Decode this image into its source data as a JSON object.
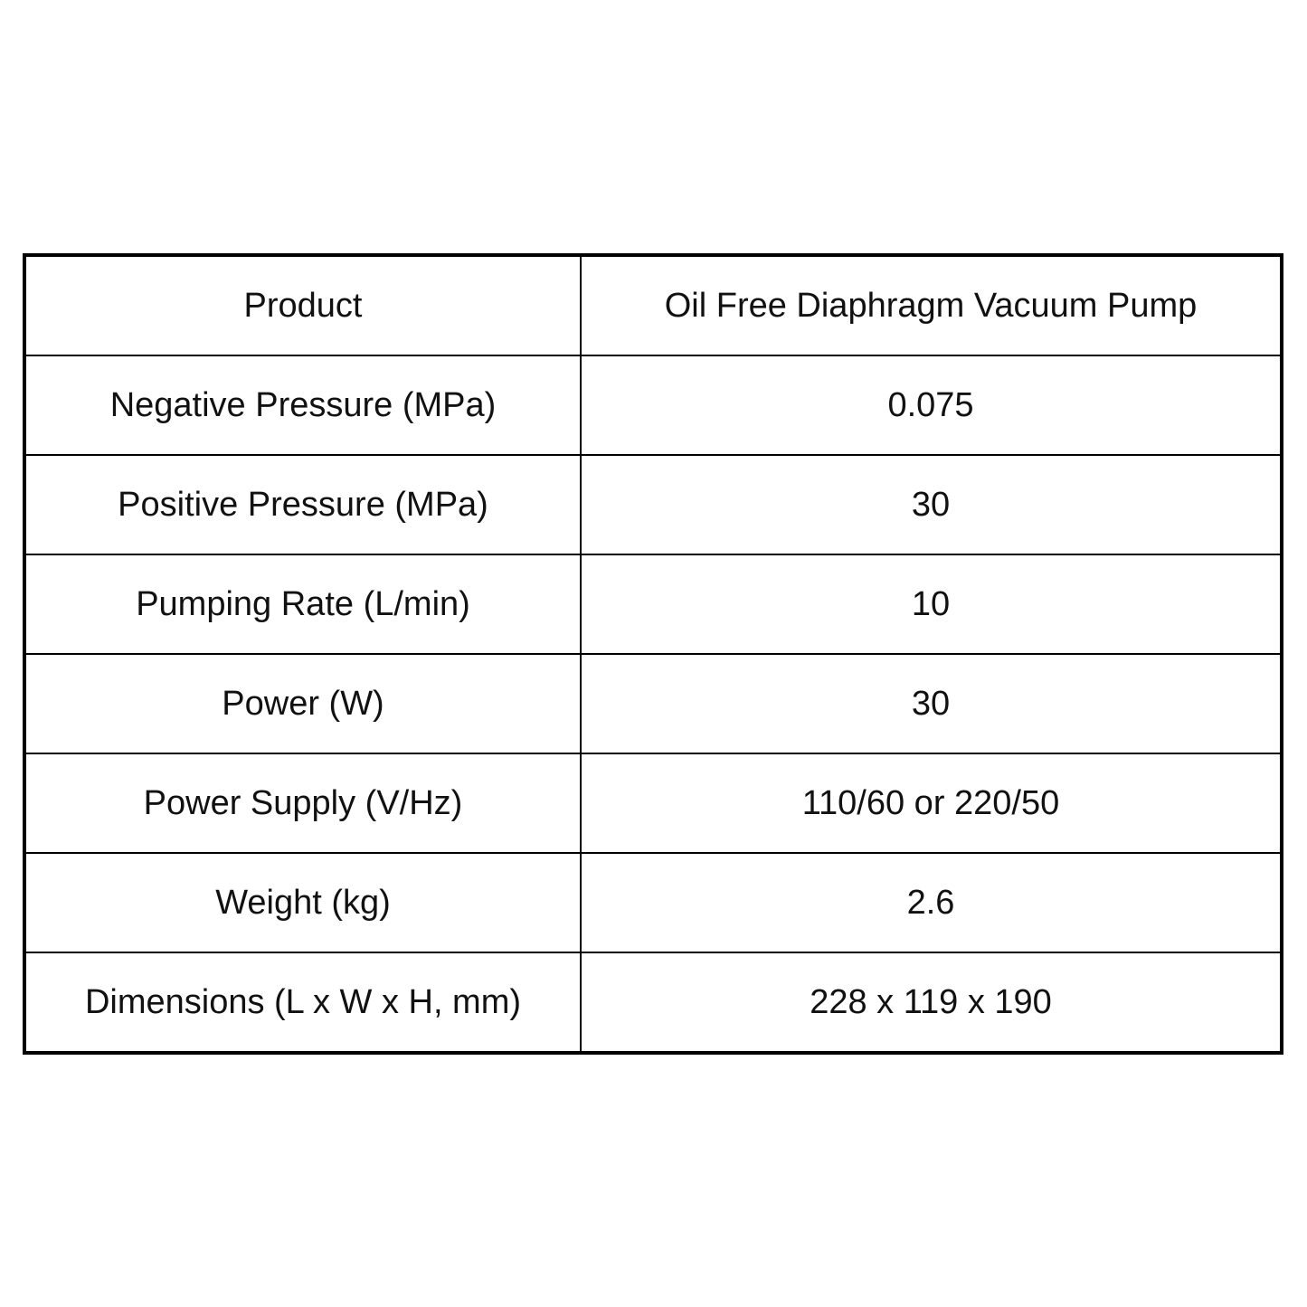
{
  "table": {
    "rows": [
      {
        "label": "Product",
        "value": "Oil Free Diaphragm Vacuum Pump"
      },
      {
        "label": "Negative Pressure (MPa)",
        "value": "0.075"
      },
      {
        "label": "Positive Pressure (MPa)",
        "value": "30"
      },
      {
        "label": "Pumping Rate (L/min)",
        "value": "10"
      },
      {
        "label": "Power (W)",
        "value": "30"
      },
      {
        "label": "Power Supply (V/Hz)",
        "value": "110/60 or 220/50"
      },
      {
        "label": "Weight (kg)",
        "value": "2.6"
      },
      {
        "label": "Dimensions (L x W x H, mm)",
        "value": "228 x 119 x 190"
      }
    ]
  }
}
